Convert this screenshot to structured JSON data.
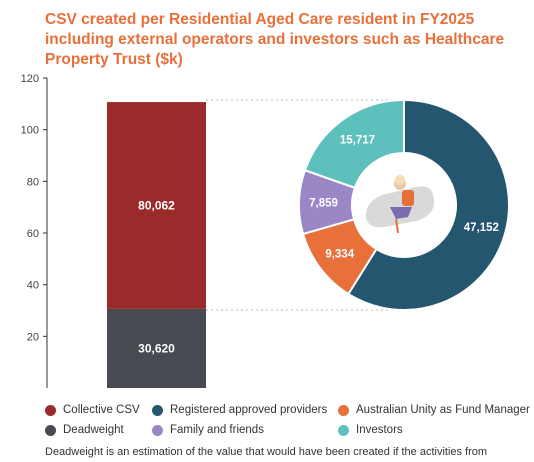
{
  "title": "CSV created per Residential Aged Care resident in FY2025 including external operators and investors such as Healthcare Property Trust ($k)",
  "footnote": "Deadweight is an estimation of the value that would have been created if the activities from",
  "colors": {
    "collective_csv": "#9b2a2a",
    "deadweight": "#474a51",
    "registered_providers": "#25566f",
    "fund_manager": "#e8703a",
    "family_friends": "#9b86c6",
    "investors": "#5ec0bd",
    "accent": "#e8703a"
  },
  "legend": [
    {
      "label": "Collective CSV",
      "color": "#9b2a2a"
    },
    {
      "label": "Registered approved providers",
      "color": "#25566f"
    },
    {
      "label": "Australian Unity as Fund Manager",
      "color": "#e8703a"
    },
    {
      "label": "Deadweight",
      "color": "#474a51"
    },
    {
      "label": "Family and friends",
      "color": "#9b86c6"
    },
    {
      "label": "Investors",
      "color": "#5ec0bd"
    }
  ],
  "chart_data": [
    {
      "type": "bar",
      "stacked": true,
      "categories": [
        ""
      ],
      "series": [
        {
          "name": "Deadweight",
          "values": [
            30.62
          ],
          "label": "30,620",
          "color": "#474a51"
        },
        {
          "name": "Collective CSV",
          "values": [
            80.062
          ],
          "label": "80,062",
          "color": "#9b2a2a"
        }
      ],
      "ylim": [
        0,
        120
      ],
      "yticks": [
        20,
        40,
        60,
        80,
        100,
        120
      ],
      "grid": false
    },
    {
      "type": "pie",
      "donut": true,
      "slices": [
        {
          "name": "Registered approved providers",
          "value": 47152,
          "label": "47,152",
          "color": "#25566f"
        },
        {
          "name": "Australian Unity as Fund Manager",
          "value": 9334,
          "label": "9,334",
          "color": "#e8703a"
        },
        {
          "name": "Family and friends",
          "value": 7859,
          "label": "7,859",
          "color": "#9b86c6"
        },
        {
          "name": "Investors",
          "value": 15717,
          "label": "15,717",
          "color": "#5ec0bd"
        }
      ]
    }
  ]
}
